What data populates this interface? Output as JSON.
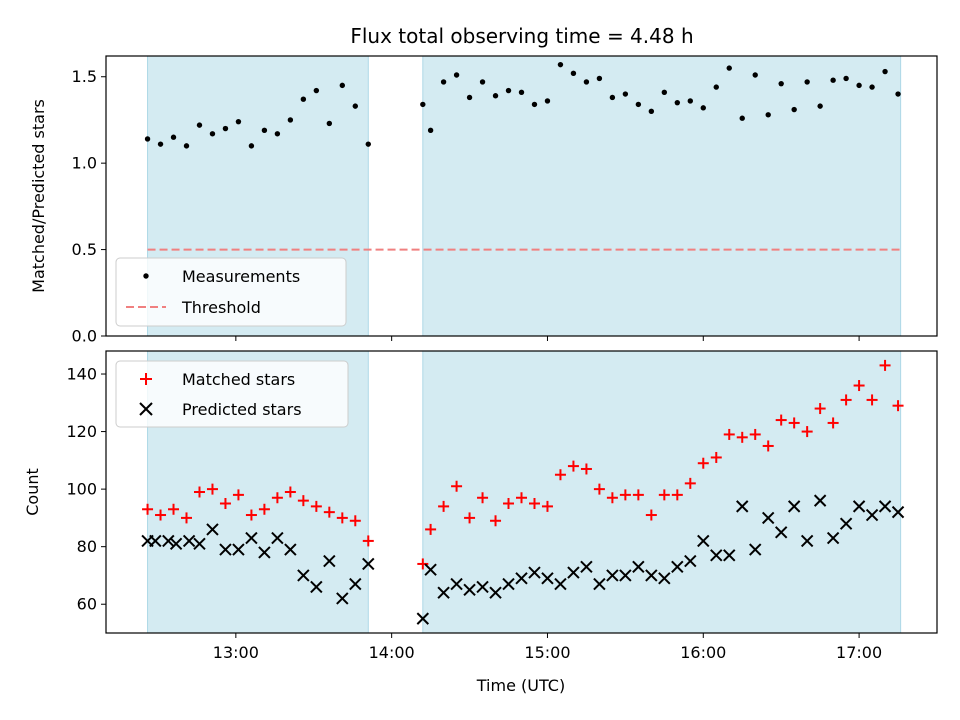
{
  "title": "Flux total observing time = 4.48 h",
  "colors": {
    "observing_span": "#add8e6",
    "measurement": "#000000",
    "threshold": "#f08080",
    "matched": "#ff0000",
    "predicted": "#000000"
  },
  "observing_spans": [
    [
      "12:26",
      "13:51"
    ],
    [
      "14:12",
      "17:16"
    ]
  ],
  "x_axis": {
    "label": "Time (UTC)",
    "range": [
      "12:10",
      "17:30"
    ],
    "ticks": [
      "13:00",
      "14:00",
      "15:00",
      "16:00",
      "17:00"
    ]
  },
  "chart_data": [
    {
      "type": "scatter",
      "ylabel": "Matched/Predicted stars",
      "ylim": [
        0,
        1.62
      ],
      "yticks": [
        "0.0",
        "0.5",
        "1.0",
        "1.5"
      ],
      "legend_position": "lower-left",
      "threshold": {
        "name": "Threshold",
        "value": 0.5,
        "x_range": [
          "12:26",
          "17:16"
        ]
      },
      "series": [
        {
          "name": "Measurements",
          "x": [
            "12:26",
            "12:31",
            "12:36",
            "12:41",
            "12:46",
            "12:51",
            "12:56",
            "13:01",
            "13:06",
            "13:11",
            "13:16",
            "13:21",
            "13:26",
            "13:31",
            "13:36",
            "13:41",
            "13:46",
            "13:51",
            "14:12",
            "14:15",
            "14:20",
            "14:25",
            "14:30",
            "14:35",
            "14:40",
            "14:45",
            "14:50",
            "14:55",
            "15:00",
            "15:05",
            "15:10",
            "15:15",
            "15:20",
            "15:25",
            "15:30",
            "15:35",
            "15:40",
            "15:45",
            "15:50",
            "15:55",
            "16:00",
            "16:05",
            "16:10",
            "16:15",
            "16:20",
            "16:25",
            "16:30",
            "16:35",
            "16:40",
            "16:45",
            "16:50",
            "16:55",
            "17:00",
            "17:05",
            "17:10",
            "17:15"
          ],
          "y": [
            1.14,
            1.11,
            1.15,
            1.1,
            1.22,
            1.17,
            1.2,
            1.24,
            1.1,
            1.19,
            1.17,
            1.25,
            1.37,
            1.42,
            1.23,
            1.45,
            1.33,
            1.11,
            1.34,
            1.19,
            1.47,
            1.51,
            1.38,
            1.47,
            1.39,
            1.42,
            1.41,
            1.34,
            1.36,
            1.57,
            1.52,
            1.47,
            1.49,
            1.38,
            1.4,
            1.34,
            1.3,
            1.41,
            1.35,
            1.36,
            1.32,
            1.44,
            1.55,
            1.26,
            1.51,
            1.28,
            1.46,
            1.31,
            1.47,
            1.33,
            1.48,
            1.49,
            1.45,
            1.44,
            1.53,
            1.4
          ]
        }
      ]
    },
    {
      "type": "scatter",
      "ylabel": "Count",
      "ylim": [
        50,
        148
      ],
      "yticks": [
        "60",
        "80",
        "100",
        "120",
        "140"
      ],
      "legend_position": "upper-left",
      "series": [
        {
          "name": "Matched stars",
          "marker": "plus",
          "x": [
            "12:26",
            "12:31",
            "12:36",
            "12:41",
            "12:46",
            "12:51",
            "12:56",
            "13:01",
            "13:06",
            "13:11",
            "13:16",
            "13:21",
            "13:26",
            "13:31",
            "13:36",
            "13:41",
            "13:46",
            "13:51",
            "14:12",
            "14:15",
            "14:20",
            "14:25",
            "14:30",
            "14:35",
            "14:40",
            "14:45",
            "14:50",
            "14:55",
            "15:00",
            "15:05",
            "15:10",
            "15:15",
            "15:20",
            "15:25",
            "15:30",
            "15:35",
            "15:40",
            "15:45",
            "15:50",
            "15:55",
            "16:00",
            "16:05",
            "16:10",
            "16:15",
            "16:20",
            "16:25",
            "16:30",
            "16:35",
            "16:40",
            "16:45",
            "16:50",
            "16:55",
            "17:00",
            "17:05",
            "17:10",
            "17:15"
          ],
          "y": [
            93,
            91,
            93,
            90,
            99,
            100,
            95,
            98,
            91,
            93,
            97,
            99,
            96,
            94,
            92,
            90,
            89,
            82,
            74,
            86,
            94,
            101,
            90,
            97,
            89,
            95,
            97,
            95,
            94,
            105,
            108,
            107,
            100,
            97,
            98,
            98,
            91,
            98,
            98,
            102,
            109,
            111,
            119,
            118,
            119,
            115,
            124,
            123,
            120,
            128,
            123,
            131,
            136,
            131,
            143,
            129
          ]
        },
        {
          "name": "Predicted stars",
          "marker": "x",
          "x": [
            "12:26",
            "12:29",
            "12:34",
            "12:37",
            "12:42",
            "12:46",
            "12:51",
            "12:56",
            "13:01",
            "13:06",
            "13:11",
            "13:16",
            "13:21",
            "13:26",
            "13:31",
            "13:36",
            "13:41",
            "13:46",
            "13:51",
            "14:12",
            "14:15",
            "14:20",
            "14:25",
            "14:30",
            "14:35",
            "14:40",
            "14:45",
            "14:50",
            "14:55",
            "15:00",
            "15:05",
            "15:10",
            "15:15",
            "15:20",
            "15:25",
            "15:30",
            "15:35",
            "15:40",
            "15:45",
            "15:50",
            "15:55",
            "16:00",
            "16:05",
            "16:10",
            "16:15",
            "16:20",
            "16:25",
            "16:30",
            "16:35",
            "16:40",
            "16:45",
            "16:50",
            "16:55",
            "17:00",
            "17:05",
            "17:10",
            "17:15"
          ],
          "y": [
            82,
            82,
            82,
            81,
            82,
            81,
            86,
            79,
            79,
            83,
            78,
            83,
            79,
            70,
            66,
            75,
            62,
            67,
            74,
            55,
            72,
            64,
            67,
            65,
            66,
            64,
            67,
            69,
            71,
            69,
            67,
            71,
            73,
            67,
            70,
            70,
            73,
            70,
            69,
            73,
            75,
            82,
            77,
            77,
            94,
            79,
            90,
            85,
            94,
            82,
            96,
            83,
            88,
            94,
            91,
            94,
            92
          ]
        }
      ]
    }
  ]
}
